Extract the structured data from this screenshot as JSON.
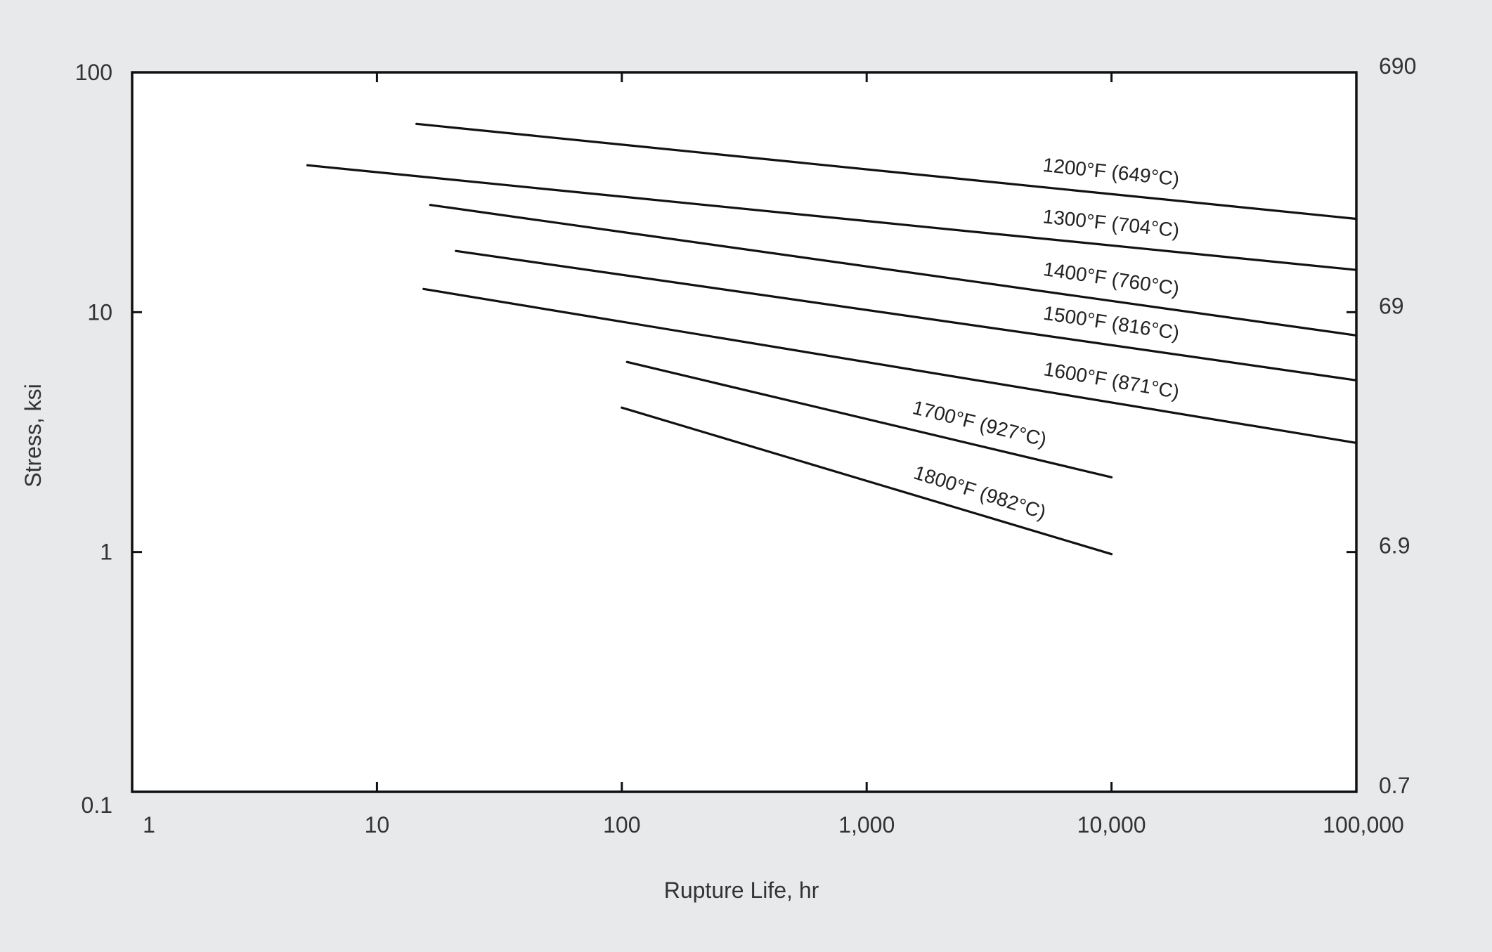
{
  "chart_data": {
    "type": "line",
    "title": "",
    "xlabel": "Rupture Life, hr",
    "ylabel": "Stress, ksi",
    "x_scale": "log",
    "y_scale": "log",
    "xlim": [
      1,
      100000
    ],
    "ylim": [
      0.1,
      100
    ],
    "grid": false,
    "x_ticks": [
      {
        "value": 1,
        "label": "1"
      },
      {
        "value": 10,
        "label": "10"
      },
      {
        "value": 100,
        "label": "100"
      },
      {
        "value": 1000,
        "label": "1,000"
      },
      {
        "value": 10000,
        "label": "10,000"
      },
      {
        "value": 100000,
        "label": "100,000"
      }
    ],
    "y_ticks_left": [
      {
        "value": 0.1,
        "label": "0.1"
      },
      {
        "value": 1,
        "label": "1"
      },
      {
        "value": 10,
        "label": "10"
      },
      {
        "value": 100,
        "label": "100"
      }
    ],
    "y_ticks_right": [
      {
        "value": 0.1,
        "label": "0.7"
      },
      {
        "value": 1,
        "label": "6.9"
      },
      {
        "value": 10,
        "label": "69"
      },
      {
        "value": 100,
        "label": "690"
      }
    ],
    "series": [
      {
        "name": "1200°F (649°C)",
        "x": [
          14.5,
          100000
        ],
        "y": [
          61,
          24.5
        ]
      },
      {
        "name": "1300°F (704°C)",
        "x": [
          5.2,
          100000
        ],
        "y": [
          41,
          15
        ]
      },
      {
        "name": "1400°F (760°C)",
        "x": [
          16.5,
          100000
        ],
        "y": [
          28,
          8
        ]
      },
      {
        "name": "1500°F (816°C)",
        "x": [
          21,
          100000
        ],
        "y": [
          18,
          5.2
        ]
      },
      {
        "name": "1600°F (871°C)",
        "x": [
          15.5,
          100000
        ],
        "y": [
          12.5,
          2.85
        ]
      },
      {
        "name": "1700°F (927°C)",
        "x": [
          105,
          10000
        ],
        "y": [
          6.2,
          2.05
        ]
      },
      {
        "name": "1800°F (982°C)",
        "x": [
          100,
          10000
        ],
        "y": [
          4.0,
          0.98
        ]
      }
    ]
  }
}
